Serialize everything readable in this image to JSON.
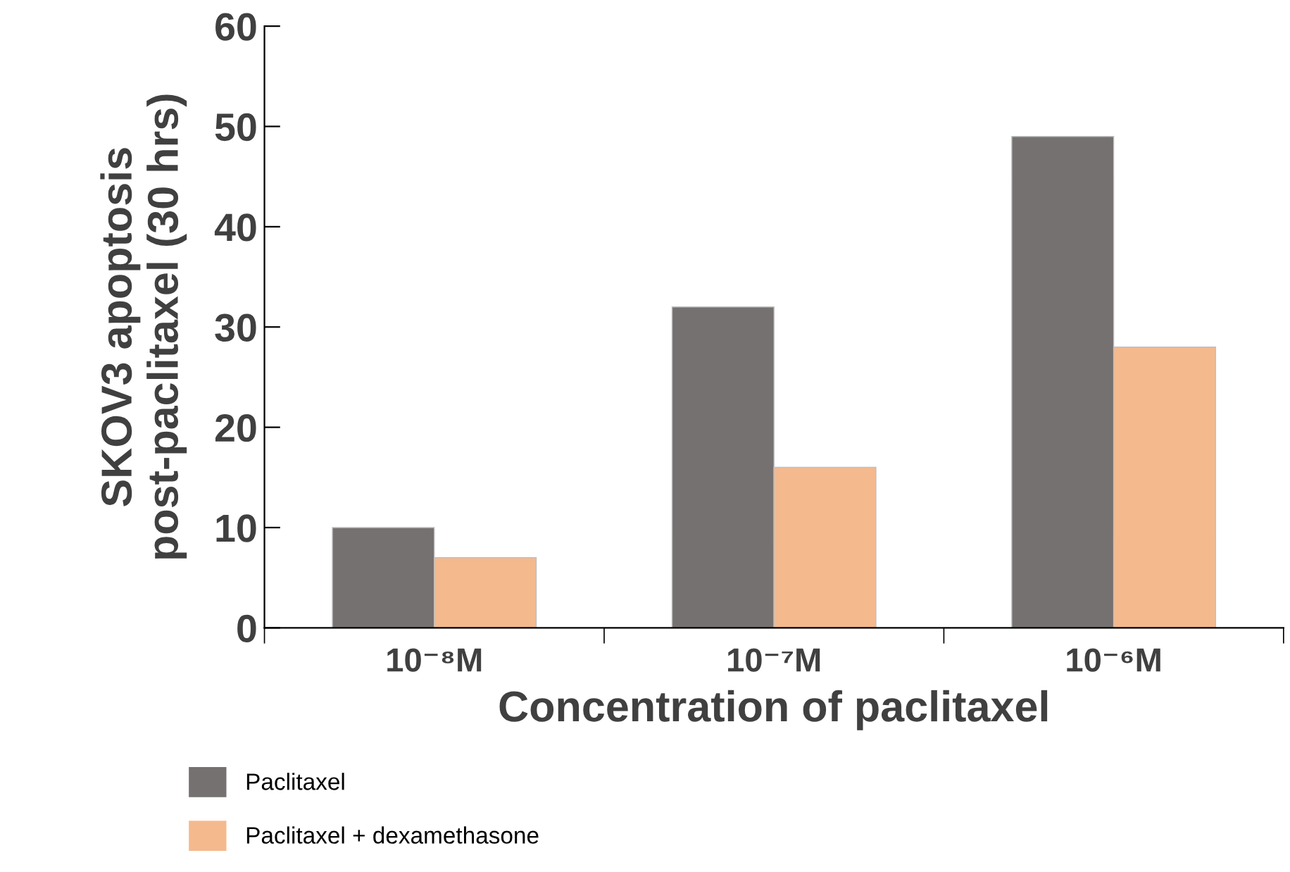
{
  "chart_data": {
    "type": "bar",
    "xlabel": "Concentration of paclitaxel",
    "ylabel": "SKOV3 apoptosis post-paclitaxel (30 hrs)",
    "categories": [
      "10⁻⁸M",
      "10⁻⁷M",
      "10⁻⁶M"
    ],
    "series": [
      {
        "name": "Paclitaxel",
        "color": "#767171",
        "values": [
          10,
          32,
          49
        ]
      },
      {
        "name": "Paclitaxel + dexamethasone",
        "color": "#f4b98d",
        "values": [
          7,
          16,
          28
        ]
      }
    ],
    "ylim": [
      0,
      60
    ],
    "yticks": [
      0,
      10,
      20,
      30,
      40,
      50,
      60
    ],
    "grid": false,
    "legend": "bottom left"
  }
}
